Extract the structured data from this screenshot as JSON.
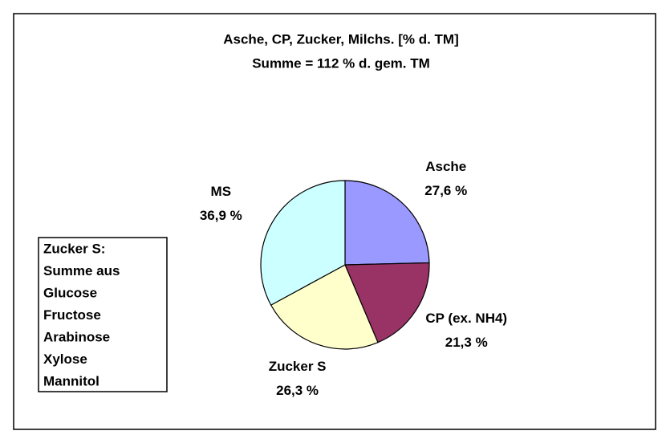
{
  "chart_data": {
    "type": "pie",
    "title": "Asche, CP, Zucker, Milchs. [% d. TM]",
    "subtitle": "Summe = 112 % d. gem. TM",
    "categories": [
      "Asche",
      "CP (ex. NH4)",
      "Zucker S",
      "MS"
    ],
    "values": [
      27.6,
      21.3,
      26.3,
      36.9
    ],
    "value_labels": [
      "27,6 %",
      "21,3 %",
      "26,3 %",
      "36,9 %"
    ],
    "colors": [
      "#9999ff",
      "#993366",
      "#ffffcc",
      "#ccffff"
    ],
    "annotation": [
      "Zucker S:",
      "Summe aus",
      "Glucose",
      "Fructose",
      "Arabinose",
      "Xylose",
      "Mannitol"
    ]
  }
}
